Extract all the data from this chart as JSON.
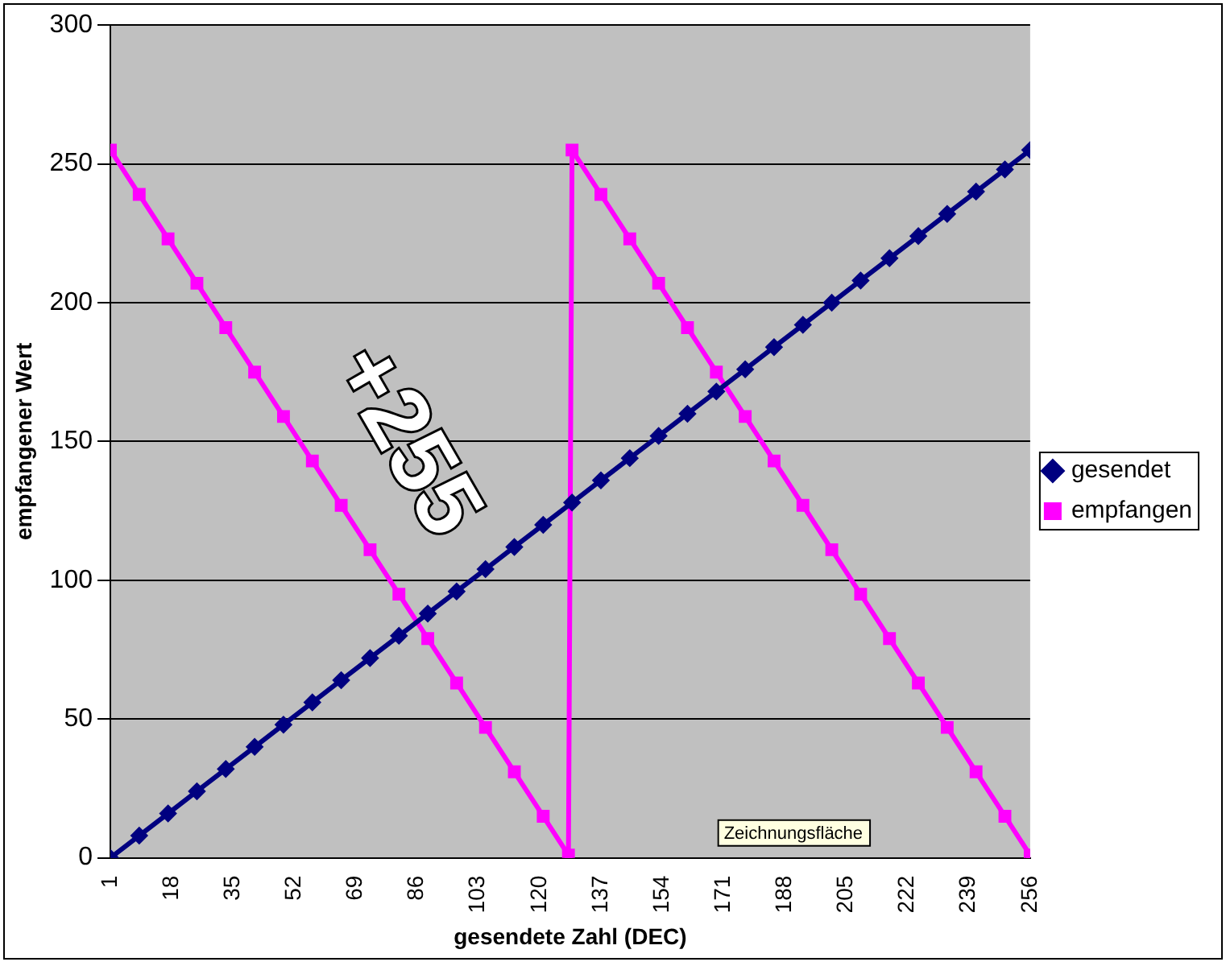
{
  "chart_data": {
    "type": "line",
    "xlabel": "gesendete Zahl (DEC)",
    "ylabel": "empfangener Wert",
    "xlim": [
      1,
      256
    ],
    "xticks": [
      1,
      18,
      35,
      52,
      69,
      86,
      103,
      120,
      137,
      154,
      171,
      188,
      205,
      222,
      239,
      256
    ],
    "ylim": [
      0,
      300
    ],
    "yticks": [
      0,
      50,
      100,
      150,
      200,
      250,
      300
    ],
    "grid": "y",
    "legend": "right",
    "line_style": "solid",
    "annotations": [
      "+255",
      "Zeichnungsfläche"
    ],
    "series": [
      {
        "name": "gesendet",
        "color": "#000080",
        "marker": "diamond",
        "x": [
          1,
          9,
          17,
          25,
          33,
          41,
          49,
          57,
          65,
          73,
          81,
          89,
          97,
          105,
          113,
          121,
          129,
          137,
          145,
          153,
          161,
          169,
          177,
          185,
          193,
          201,
          209,
          217,
          225,
          233,
          241,
          249,
          256
        ],
        "values": [
          0,
          8,
          16,
          24,
          32,
          40,
          48,
          56,
          64,
          72,
          80,
          88,
          96,
          104,
          112,
          120,
          128,
          136,
          144,
          152,
          160,
          168,
          176,
          184,
          192,
          200,
          208,
          216,
          224,
          232,
          240,
          248,
          255
        ]
      },
      {
        "name": "empfangen",
        "color": "#ff00ff",
        "marker": "square",
        "x": [
          1,
          9,
          17,
          25,
          33,
          41,
          49,
          57,
          65,
          73,
          81,
          89,
          97,
          105,
          113,
          121,
          128,
          129,
          137,
          145,
          153,
          161,
          169,
          177,
          185,
          193,
          201,
          209,
          217,
          225,
          233,
          241,
          249,
          256
        ],
        "values": [
          255,
          239,
          223,
          207,
          191,
          175,
          159,
          143,
          127,
          111,
          95,
          79,
          63,
          47,
          31,
          15,
          1,
          255,
          239,
          223,
          207,
          191,
          175,
          159,
          143,
          127,
          111,
          95,
          79,
          63,
          47,
          31,
          15,
          1
        ]
      }
    ]
  }
}
